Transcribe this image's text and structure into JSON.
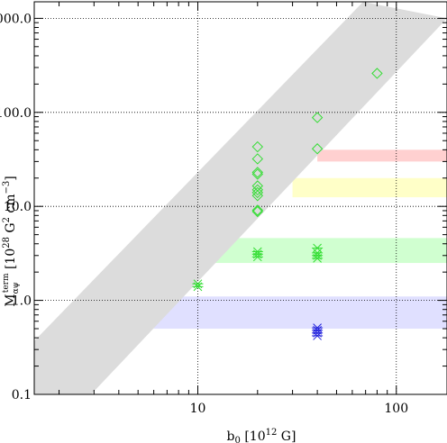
{
  "chart_data": {
    "type": "scatter",
    "title": "",
    "xlabel": {
      "main": "b",
      "sub": "0",
      "rest": " [10",
      "sup": "12",
      "tail": " G]"
    },
    "ylabel": {
      "main": "M",
      "sub": "αψ",
      "sup": "term",
      "rest": " [10",
      "sup2": "28",
      "mid": " G",
      "sup3": "2",
      "mid2": " cm",
      "sup4": "−3",
      "tail": "]"
    },
    "x_scale": "log",
    "y_scale": "log",
    "xlim": [
      1.5,
      180
    ],
    "ylim": [
      0.1,
      1500
    ],
    "x_ticks": [
      {
        "value": 10,
        "label": "10"
      },
      {
        "value": 100,
        "label": "100"
      }
    ],
    "y_ticks": [
      {
        "value": 0.1,
        "label": "0.1"
      },
      {
        "value": 1,
        "label": "1.0"
      },
      {
        "value": 10,
        "label": "10.0"
      },
      {
        "value": 100,
        "label": "100.0"
      },
      {
        "value": 1000,
        "label": "1000.0"
      }
    ],
    "grid": "dotted at major ticks",
    "diagonal_band": {
      "color": "#dcdcdc",
      "upper_edge": [
        [
          1.5,
          0.37
        ],
        [
          68,
          1500
        ]
      ],
      "lower_edge": [
        [
          2.9,
          0.1
        ],
        [
          180,
          1000
        ]
      ]
    },
    "horizontal_bands": [
      {
        "color": "#ffd0d0",
        "x_range": [
          40,
          180
        ],
        "y_range": [
          30,
          40
        ]
      },
      {
        "color": "#ffffc8",
        "x_range": [
          30,
          180
        ],
        "y_range": [
          12.5,
          20
        ]
      },
      {
        "color": "#d0ffd0",
        "x_range": [
          10.5,
          180
        ],
        "y_range": [
          2.5,
          4.6
        ]
      },
      {
        "color": "#e0e0ff",
        "x_range": [
          6,
          180
        ],
        "y_range": [
          0.5,
          1.1
        ]
      }
    ],
    "series": [
      {
        "marker": "diamond",
        "color": "#33dd33",
        "points": [
          [
            20,
            8.8
          ],
          [
            20,
            9.1
          ],
          [
            20,
            13
          ],
          [
            20,
            14
          ],
          [
            20,
            15
          ],
          [
            20,
            16.5
          ],
          [
            20,
            22
          ],
          [
            20,
            23
          ],
          [
            20,
            32
          ],
          [
            20,
            43
          ],
          [
            40,
            41
          ],
          [
            40,
            88
          ],
          [
            80,
            260
          ]
        ]
      },
      {
        "marker": "asterisk",
        "color": "#33dd33",
        "points": [
          [
            10,
            1.4
          ],
          [
            10,
            1.5
          ],
          [
            20,
            2.9
          ],
          [
            20,
            3.1
          ],
          [
            20,
            3.3
          ],
          [
            40,
            2.8
          ],
          [
            40,
            3.0
          ],
          [
            40,
            3.2
          ],
          [
            40,
            3.6
          ]
        ]
      },
      {
        "marker": "asterisk",
        "color": "#2222dd",
        "points": [
          [
            40,
            0.42
          ],
          [
            40,
            0.45
          ],
          [
            40,
            0.48
          ],
          [
            40,
            0.51
          ]
        ]
      }
    ]
  }
}
